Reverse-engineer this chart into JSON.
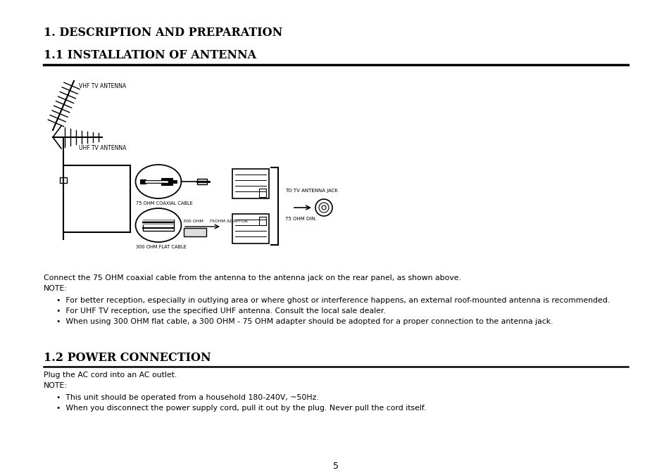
{
  "bg_color": "#ffffff",
  "page_width": 9.54,
  "page_height": 6.75,
  "title1": "1. DESCRIPTION AND PREPARATION",
  "title2": "1.1 INSTALLATION OF ANTENNA",
  "title3": "1.2 POWER CONNECTION",
  "body_text1": "Connect the 75 OHM coaxial cable from the antenna to the antenna jack on the rear panel, as shown above.",
  "body_text2": "NOTE:",
  "bullet1": "For better reception, especially in outlying area or where ghost or interference happens, an external roof-mounted antenna is recommended.",
  "bullet2": "For UHF TV reception, use the specified UHF antenna. Consult the local sale dealer.",
  "bullet3": "When using 300 OHM flat cable, a 300 OHM - 75 OHM adapter should be adopted for a proper connection to the antenna jack.",
  "body_text3": "Plug the AC cord into an AC outlet.",
  "body_text4": "NOTE:",
  "bullet4": "This unit should be operated from a household 180-240V, ~50Hz.",
  "bullet5": "When you disconnect the power supply cord, pull it out by the plug. Never pull the cord itself.",
  "page_num": "5",
  "label_vhf": "VHF TV ANTENNA",
  "label_uhf": "UHF TV ANTENNA",
  "label_coax": "75 OHM COAXIAL CABLE",
  "label_flat": "300 OHM FLAT CABLE",
  "label_300ohm": "300 OHM",
  "label_75ohm": "75OHM ADAPTOR",
  "label_arrow": "→",
  "label_jack": "TO TV ANTENNA JACK",
  "label_din": "75 OHM DIN."
}
